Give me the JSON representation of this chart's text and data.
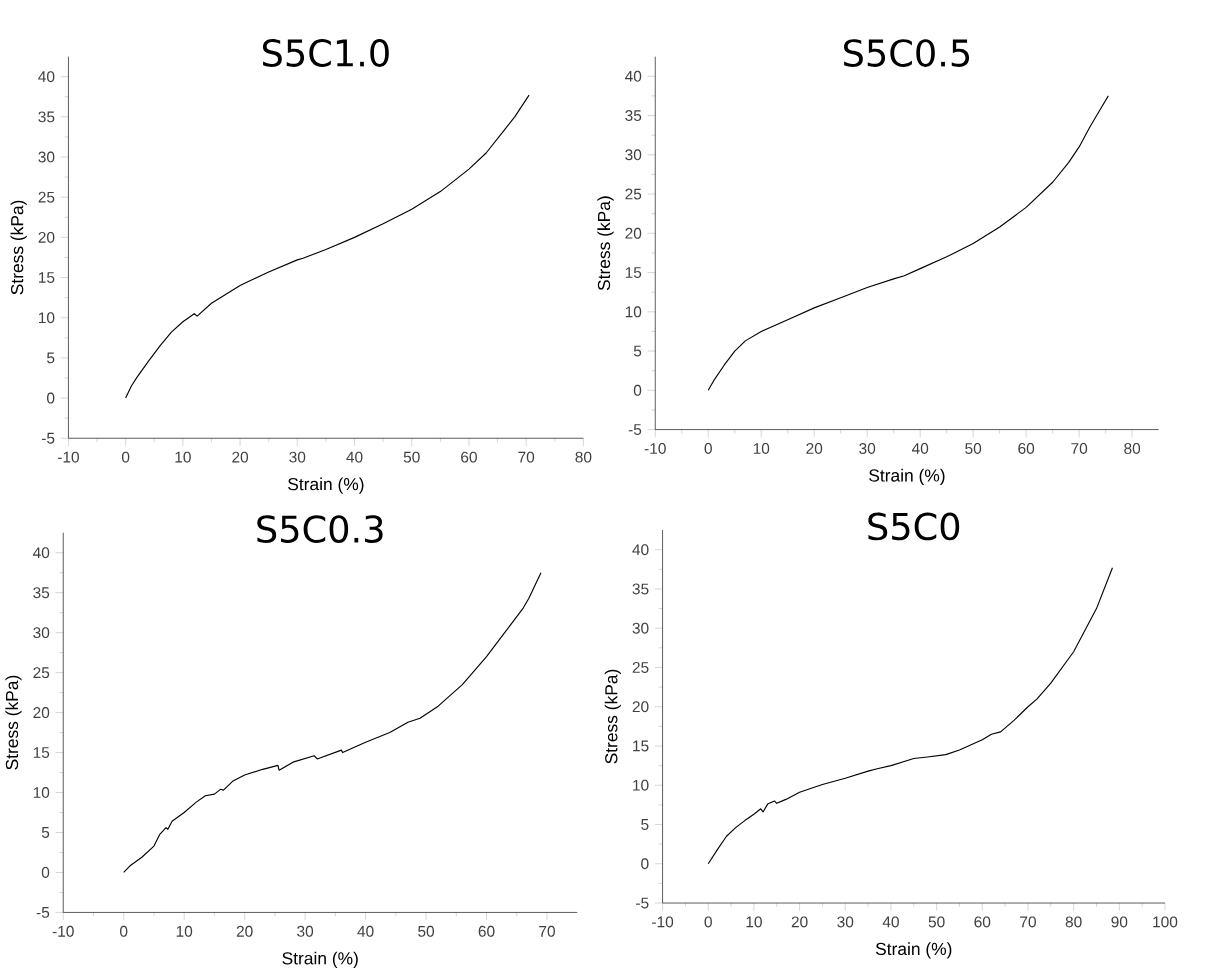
{
  "chart_data": [
    {
      "type": "line",
      "title": "S5C1.0",
      "xlabel": "Strain (%)",
      "ylabel": "Stress (kPa)",
      "color": "#000000",
      "x": [
        0,
        1,
        2,
        4,
        6,
        8,
        10,
        12,
        12.5,
        15,
        20,
        25,
        30,
        31,
        35,
        40,
        45,
        50,
        55,
        60,
        63,
        66,
        68,
        70.5
      ],
      "values": [
        0,
        1.5,
        2.6,
        4.6,
        6.5,
        8.2,
        9.5,
        10.5,
        10.2,
        11.8,
        14.0,
        15.7,
        17.2,
        17.4,
        18.5,
        20.0,
        21.7,
        23.5,
        25.7,
        28.5,
        30.5,
        33.2,
        35,
        37.7
      ],
      "xlim": [
        -10,
        80
      ],
      "ylim": [
        -5,
        42.5
      ],
      "xticks": [
        -10,
        0,
        10,
        20,
        30,
        40,
        50,
        60,
        70,
        80
      ],
      "yticks": [
        -5,
        0,
        5,
        10,
        15,
        20,
        25,
        30,
        35,
        40
      ]
    },
    {
      "type": "line",
      "title": "S5C0.5",
      "xlabel": "Strain (%)",
      "ylabel": "Stress (kPa)",
      "color": "#000000",
      "x": [
        0,
        1,
        3,
        5,
        7,
        10,
        15,
        20,
        25,
        30,
        35,
        37,
        40,
        45,
        50,
        55,
        60,
        65,
        68,
        70,
        72,
        74,
        75.5
      ],
      "values": [
        0,
        1.2,
        3.2,
        5,
        6.3,
        7.5,
        9.0,
        10.5,
        11.8,
        13.1,
        14.2,
        14.6,
        15.5,
        17,
        18.7,
        20.8,
        23.3,
        26.5,
        29,
        31,
        33.5,
        35.8,
        37.5
      ],
      "xlim": [
        -10,
        85
      ],
      "ylim": [
        -5,
        42.5
      ],
      "xticks": [
        -10,
        0,
        10,
        20,
        30,
        40,
        50,
        60,
        70,
        80
      ],
      "yticks": [
        -5,
        0,
        5,
        10,
        15,
        20,
        25,
        30,
        35,
        40
      ]
    },
    {
      "type": "line",
      "title": "S5C0.3",
      "xlabel": "Strain (%)",
      "ylabel": "Stress (kPa)",
      "color": "#000000",
      "x": [
        0,
        1,
        3,
        5,
        6,
        7,
        7.3,
        8,
        10,
        12,
        13.5,
        15,
        16,
        16.5,
        18,
        20,
        23,
        25.5,
        25.7,
        28,
        31.5,
        32,
        36,
        36.2,
        40,
        44,
        47,
        49,
        52,
        56,
        60,
        63,
        66,
        67,
        69
      ],
      "values": [
        0,
        0.8,
        1.9,
        3.3,
        4.8,
        5.6,
        5.4,
        6.4,
        7.5,
        8.8,
        9.6,
        9.8,
        10.4,
        10.3,
        11.4,
        12.2,
        12.9,
        13.4,
        12.8,
        13.8,
        14.6,
        14.2,
        15.3,
        15.0,
        16.3,
        17.5,
        18.8,
        19.3,
        20.8,
        23.5,
        27.0,
        30.0,
        33.0,
        34.3,
        37.5
      ],
      "xlim": [
        -10,
        75
      ],
      "ylim": [
        -5,
        42.5
      ],
      "xticks": [
        -10,
        0,
        10,
        20,
        30,
        40,
        50,
        60,
        70
      ],
      "yticks": [
        -5,
        0,
        5,
        10,
        15,
        20,
        25,
        30,
        35,
        40
      ]
    },
    {
      "type": "line",
      "title": "S5C0",
      "xlabel": "Strain (%)",
      "ylabel": "Stress (kPa)",
      "color": "#000000",
      "x": [
        0,
        2,
        4,
        6,
        8,
        10,
        11.5,
        12,
        13,
        14.5,
        15,
        17,
        20,
        25,
        30,
        35,
        37,
        40,
        45,
        48,
        52,
        55,
        60,
        62,
        64,
        67,
        70,
        72,
        75,
        80,
        85,
        88.5
      ],
      "values": [
        0,
        1.8,
        3.5,
        4.6,
        5.5,
        6.3,
        7.0,
        6.6,
        7.6,
        8.0,
        7.7,
        8.2,
        9.1,
        10.1,
        10.9,
        11.8,
        12.1,
        12.5,
        13.4,
        13.6,
        13.9,
        14.5,
        15.8,
        16.5,
        16.8,
        18.3,
        20.0,
        21.0,
        23.0,
        27.0,
        32.5,
        37.7
      ],
      "xlim": [
        -10,
        100
      ],
      "ylim": [
        -5,
        42.5
      ],
      "xticks": [
        -10,
        0,
        10,
        20,
        30,
        40,
        50,
        60,
        70,
        80,
        90,
        100
      ],
      "yticks": [
        -5,
        0,
        5,
        10,
        15,
        20,
        25,
        30,
        35,
        40
      ]
    }
  ]
}
